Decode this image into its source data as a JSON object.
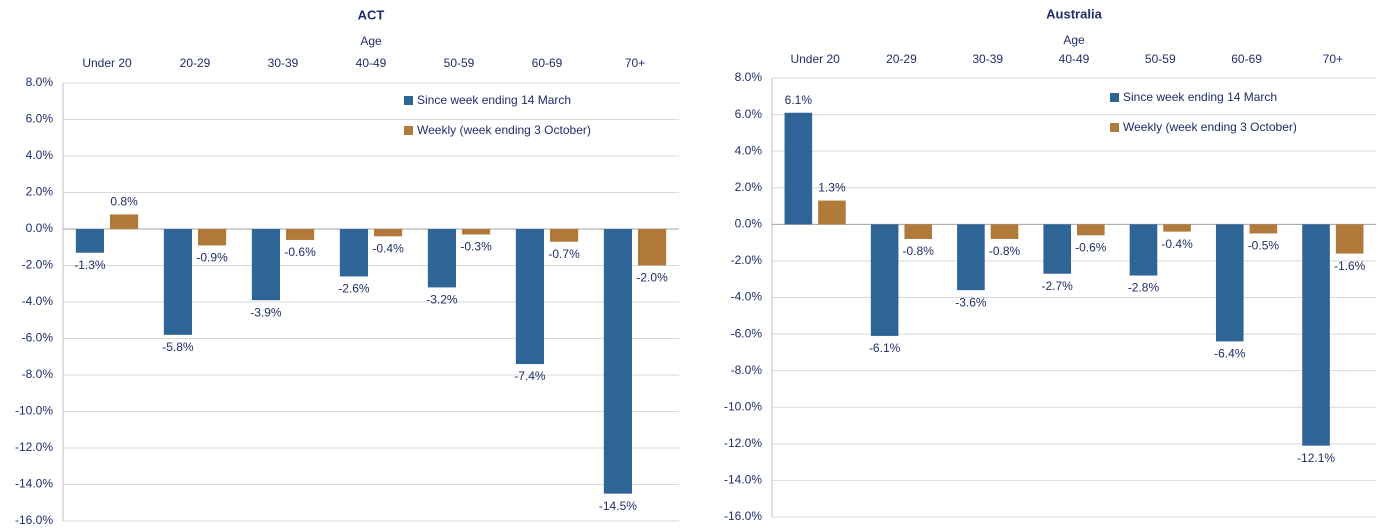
{
  "chart_data": [
    {
      "type": "bar",
      "title": "ACT",
      "xlabel": "Age",
      "categories": [
        "Under 20",
        "20-29",
        "30-39",
        "40-49",
        "50-59",
        "60-69",
        "70+"
      ],
      "series": [
        {
          "name": "Since week ending 14 March",
          "color": "#2f6497",
          "values": [
            -1.3,
            -5.8,
            -3.9,
            -2.6,
            -3.2,
            -7.4,
            -14.5
          ],
          "value_labels": [
            "-1.3%",
            "-5.8%",
            "-3.9%",
            "-2.6%",
            "-3.2%",
            "-7.4%",
            "-14.5%"
          ]
        },
        {
          "name": "Weekly (week ending 3 October)",
          "color": "#b07a3b",
          "values": [
            0.8,
            -0.9,
            -0.6,
            -0.4,
            -0.3,
            -0.7,
            -2.0
          ],
          "value_labels": [
            "0.8%",
            "-0.9%",
            "-0.6%",
            "-0.4%",
            "-0.3%",
            "-0.7%",
            "-2.0%"
          ]
        }
      ],
      "ylim": [
        -16,
        8
      ],
      "yticks": [
        {
          "value": 8,
          "label": "8.0%"
        },
        {
          "value": 6,
          "label": "6.0%"
        },
        {
          "value": 4,
          "label": "4.0%"
        },
        {
          "value": 2,
          "label": "2.0%"
        },
        {
          "value": 0,
          "label": "0.0%"
        },
        {
          "value": -2,
          "label": "-2.0%"
        },
        {
          "value": -4,
          "label": "-4.0%"
        },
        {
          "value": -6,
          "label": "-6.0%"
        },
        {
          "value": -8,
          "label": "-8.0%"
        },
        {
          "value": -10,
          "label": "-10.0%"
        },
        {
          "value": -12,
          "label": "-12.0%"
        },
        {
          "value": -14,
          "label": "-14.0%"
        },
        {
          "value": -16,
          "label": "-16.0%"
        }
      ],
      "grid": true,
      "legend": "upper right"
    },
    {
      "type": "bar",
      "title": "Australia",
      "xlabel": "Age",
      "categories": [
        "Under 20",
        "20-29",
        "30-39",
        "40-49",
        "50-59",
        "60-69",
        "70+"
      ],
      "series": [
        {
          "name": "Since week ending 14 March",
          "color": "#2f6497",
          "values": [
            6.1,
            -6.1,
            -3.6,
            -2.7,
            -2.8,
            -6.4,
            -12.1
          ],
          "value_labels": [
            "6.1%",
            "-6.1%",
            "-3.6%",
            "-2.7%",
            "-2.8%",
            "-6.4%",
            "-12.1%"
          ]
        },
        {
          "name": "Weekly (week ending 3 October)",
          "color": "#b07a3b",
          "values": [
            1.3,
            -0.8,
            -0.8,
            -0.6,
            -0.4,
            -0.5,
            -1.6
          ],
          "value_labels": [
            "1.3%",
            "-0.8%",
            "-0.8%",
            "-0.6%",
            "-0.4%",
            "-0.5%",
            "-1.6%"
          ]
        }
      ],
      "ylim": [
        -16,
        8
      ],
      "yticks": [
        {
          "value": 8,
          "label": "8.0%"
        },
        {
          "value": 6,
          "label": "6.0%"
        },
        {
          "value": 4,
          "label": "4.0%"
        },
        {
          "value": 2,
          "label": "2.0%"
        },
        {
          "value": 0,
          "label": "0.0%"
        },
        {
          "value": -2,
          "label": "-2.0%"
        },
        {
          "value": -4,
          "label": "-4.0%"
        },
        {
          "value": -6,
          "label": "-6.0%"
        },
        {
          "value": -8,
          "label": "-8.0%"
        },
        {
          "value": -10,
          "label": "-10.0%"
        },
        {
          "value": -12,
          "label": "-12.0%"
        },
        {
          "value": -14,
          "label": "-14.0%"
        },
        {
          "value": -16,
          "label": "-16.0%"
        }
      ],
      "grid": true,
      "legend": "upper right"
    }
  ]
}
